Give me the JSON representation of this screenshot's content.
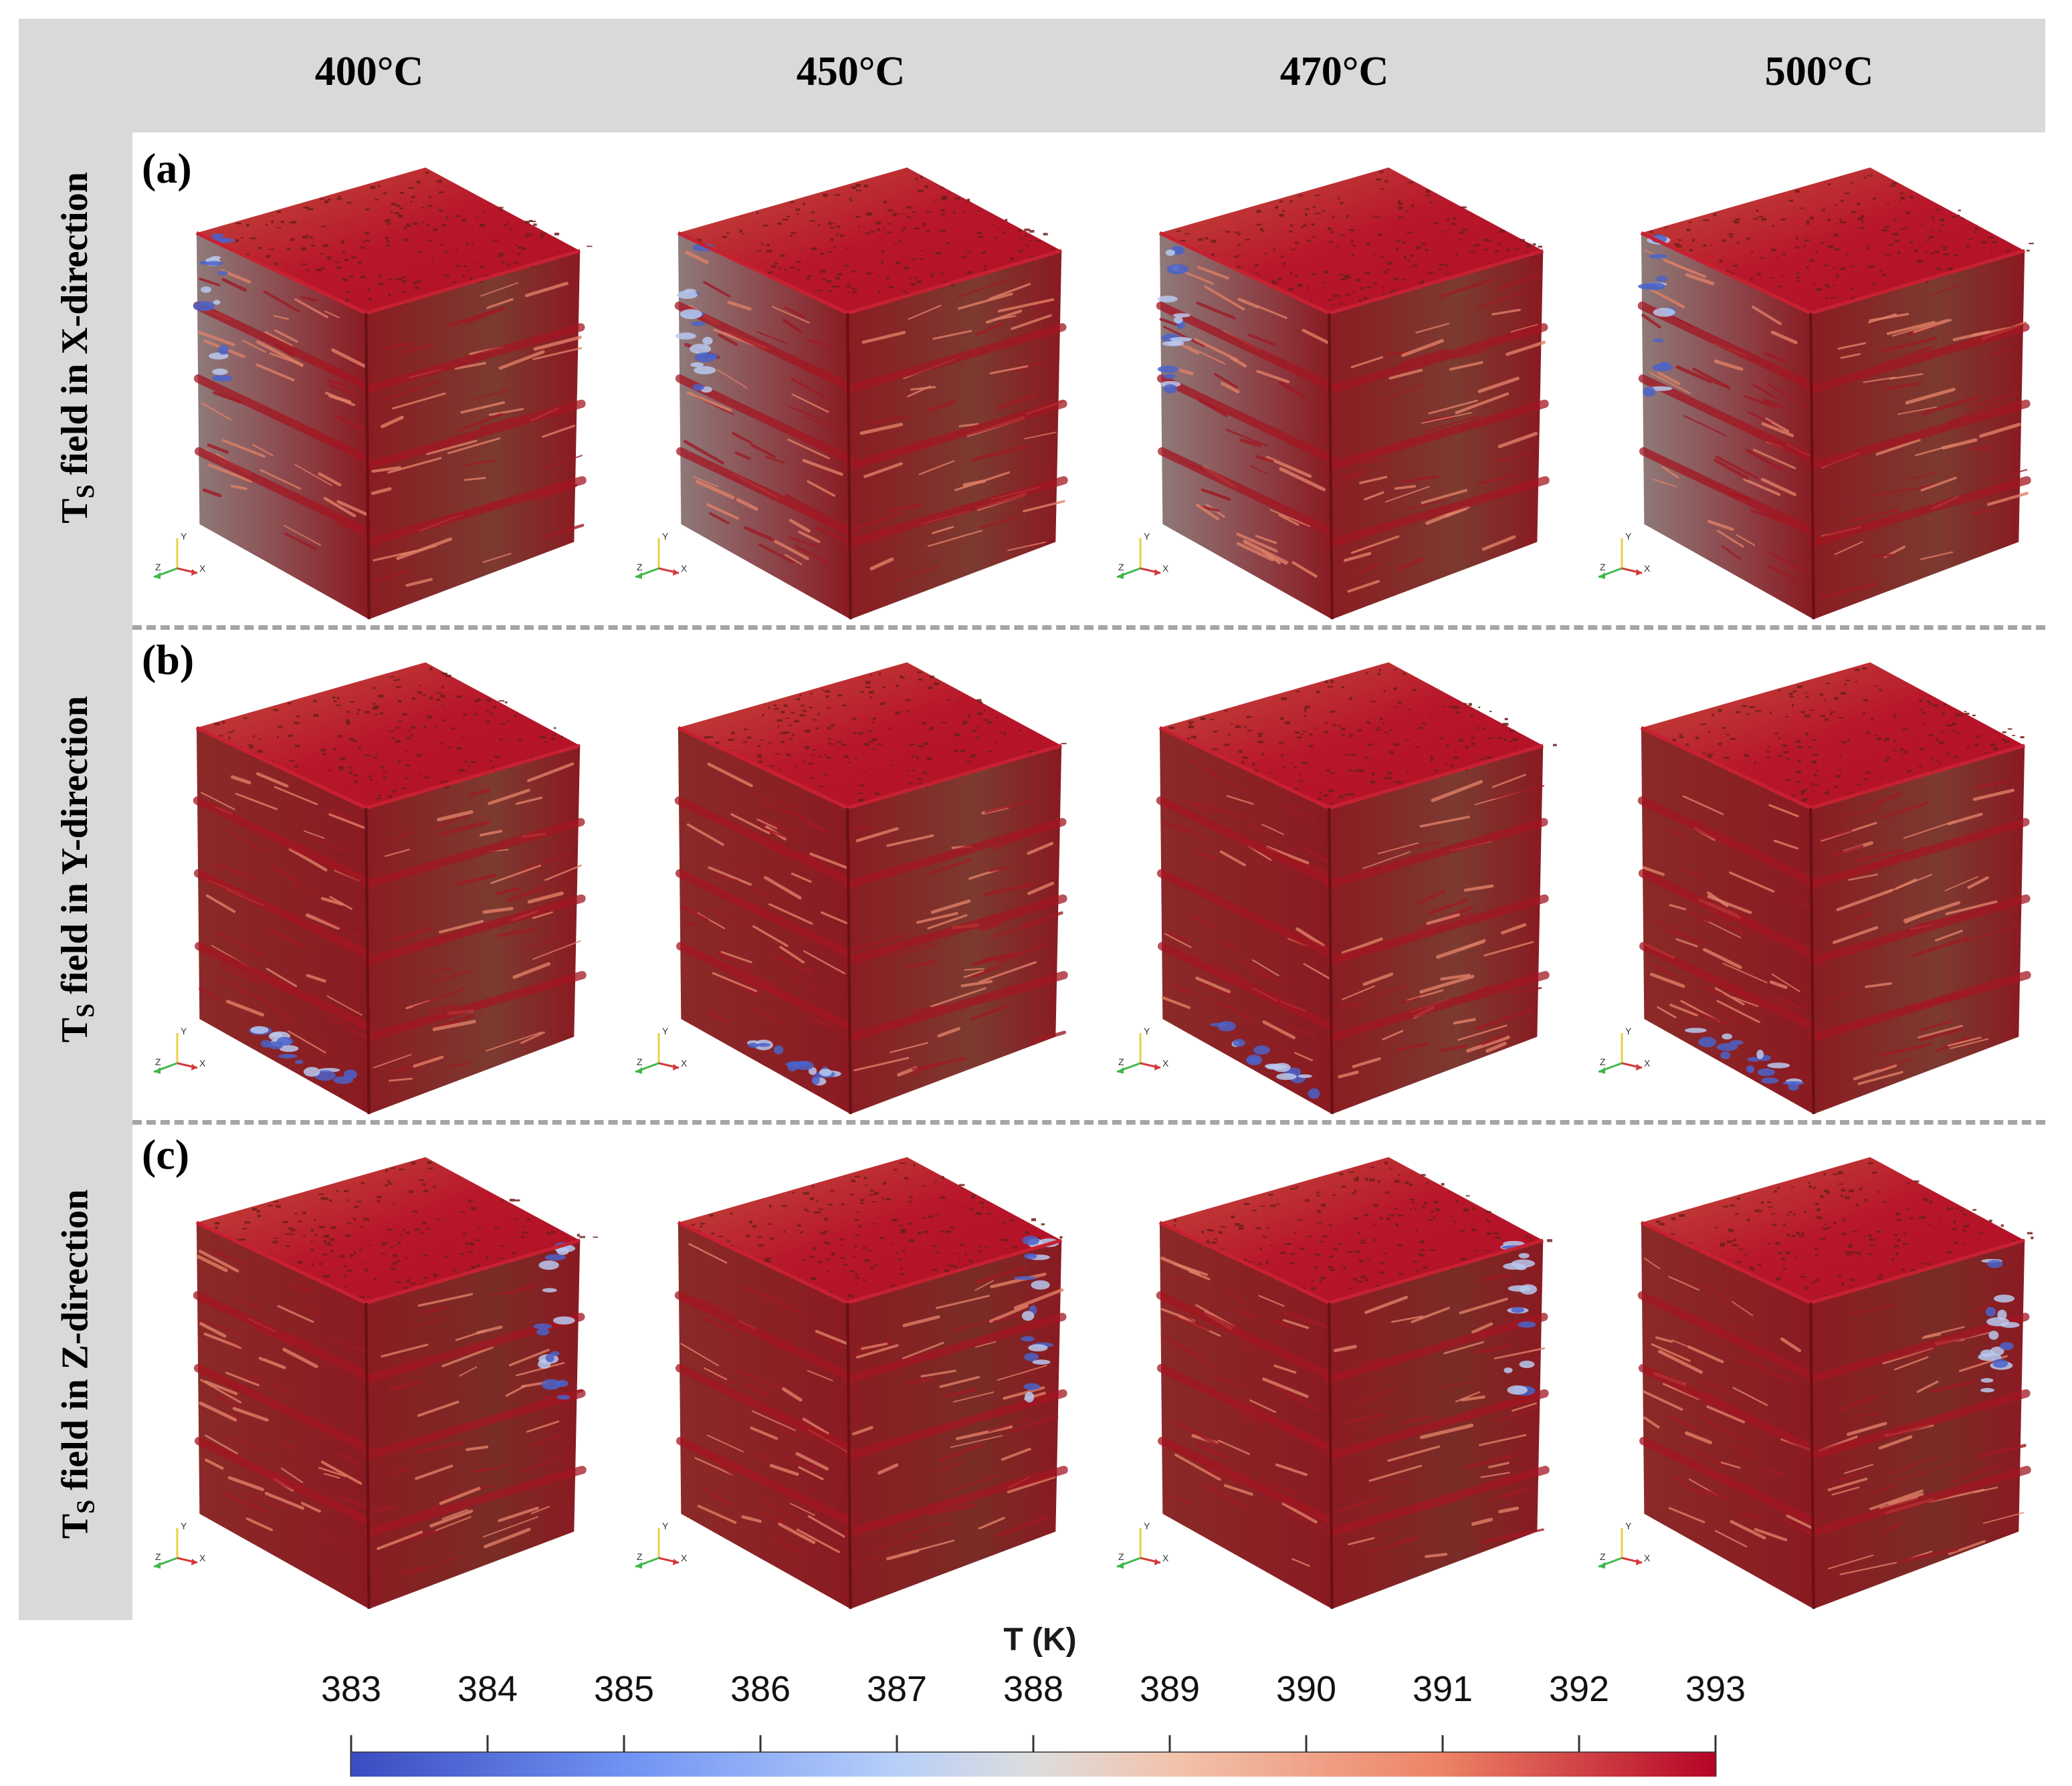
{
  "columns": {
    "c1": "400°C",
    "c2": "450°C",
    "c3": "470°C",
    "c4": "500°C"
  },
  "rows": {
    "a": {
      "tag": "(a)",
      "label_main": "T",
      "label_sub": "S",
      "label_rest": " field in X-direction"
    },
    "b": {
      "tag": "(b)",
      "label_main": "T",
      "label_sub": "S",
      "label_rest": " field in Y-direction"
    },
    "c": {
      "tag": "(c)",
      "label_main": "T",
      "label_sub": "S",
      "label_rest": " field in Z-direction"
    }
  },
  "axes_triad": {
    "x": "X",
    "y": "Y",
    "z": "Z"
  },
  "colorbar": {
    "title": "T (K)",
    "ticks": [
      "383",
      "384",
      "385",
      "386",
      "387",
      "388",
      "389",
      "390",
      "391",
      "392",
      "393"
    ],
    "range": [
      383,
      393
    ],
    "colors": [
      "#3b4cc0",
      "#dddddd",
      "#b40426"
    ]
  }
}
